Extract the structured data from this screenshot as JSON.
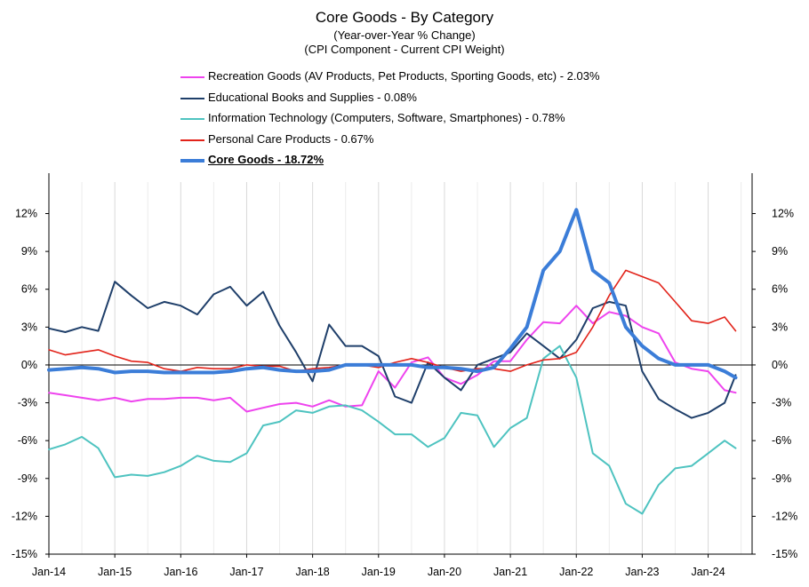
{
  "titles": {
    "main": "Core Goods - By Category",
    "sub1": "(Year-over-Year % Change)",
    "sub2": "(CPI Component - Current CPI Weight)"
  },
  "chart_data": {
    "type": "line",
    "title": "Core Goods - By Category",
    "subtitle": "(Year-over-Year % Change) (CPI Component - Current CPI Weight)",
    "xlabel": "",
    "ylabel": "",
    "x_tick_labels": [
      "Jan-14",
      "Jan-15",
      "Jan-16",
      "Jan-17",
      "Jan-18",
      "Jan-19",
      "Jan-20",
      "Jan-21",
      "Jan-22",
      "Jan-23",
      "Jan-24"
    ],
    "y_tick_labels": [
      "12%",
      "9%",
      "6%",
      "3%",
      "0%",
      "-3%",
      "-6%",
      "-9%",
      "-12%",
      "-15%"
    ],
    "y_ticks": [
      12,
      9,
      6,
      3,
      0,
      -3,
      -6,
      -9,
      -12,
      -15
    ],
    "ylim": [
      -15,
      14.5
    ],
    "xlim": [
      "2014-01",
      "2024-09"
    ],
    "grid": "vertical",
    "legend_position": "top",
    "x": [
      "2014-01",
      "2014-04",
      "2014-07",
      "2014-10",
      "2015-01",
      "2015-04",
      "2015-07",
      "2015-10",
      "2016-01",
      "2016-04",
      "2016-07",
      "2016-10",
      "2017-01",
      "2017-04",
      "2017-07",
      "2017-10",
      "2018-01",
      "2018-04",
      "2018-07",
      "2018-10",
      "2019-01",
      "2019-04",
      "2019-07",
      "2019-10",
      "2020-01",
      "2020-04",
      "2020-07",
      "2020-10",
      "2021-01",
      "2021-04",
      "2021-07",
      "2021-10",
      "2022-01",
      "2022-04",
      "2022-07",
      "2022-10",
      "2023-01",
      "2023-04",
      "2023-07",
      "2023-10",
      "2024-01",
      "2024-04",
      "2024-06"
    ],
    "series": [
      {
        "name": "Recreation Goods (AV Products, Pet Products, Sporting Goods, etc) - 2.03%",
        "color": "#ee44ee",
        "width": 2,
        "values": [
          -2.2,
          -2.4,
          -2.6,
          -2.8,
          -2.6,
          -2.9,
          -2.7,
          -2.7,
          -2.6,
          -2.6,
          -2.8,
          -2.6,
          -3.7,
          -3.4,
          -3.1,
          -3.0,
          -3.3,
          -2.8,
          -3.3,
          -3.2,
          -0.5,
          -1.8,
          0.2,
          0.6,
          -1.0,
          -1.5,
          -0.8,
          0.3,
          0.3,
          2.0,
          3.4,
          3.3,
          4.7,
          3.3,
          4.2,
          3.9,
          3.0,
          2.5,
          0.2,
          -0.3,
          -0.5,
          -2.0,
          -2.2
        ]
      },
      {
        "name": "Educational Books and Supplies - 0.08%",
        "color": "#1f3f6a",
        "width": 2,
        "values": [
          2.9,
          2.6,
          3.0,
          2.7,
          6.6,
          5.5,
          4.5,
          5.0,
          4.7,
          4.0,
          5.6,
          6.2,
          4.7,
          5.8,
          3.1,
          1.0,
          -1.3,
          3.2,
          1.5,
          1.5,
          0.7,
          -2.5,
          -3.0,
          0.2,
          -1.0,
          -2.0,
          0.0,
          0.5,
          1.0,
          2.5,
          1.5,
          0.5,
          2.0,
          4.5,
          5.0,
          4.7,
          -0.5,
          -2.7,
          -3.5,
          -4.2,
          -3.8,
          -3.0,
          -0.8
        ]
      },
      {
        "name": "Information Technology (Computers, Software, Smartphones) - 0.78%",
        "color": "#4ec3c0",
        "width": 2,
        "values": [
          -6.7,
          -6.3,
          -5.7,
          -6.6,
          -8.9,
          -8.7,
          -8.8,
          -8.5,
          -8.0,
          -7.2,
          -7.6,
          -7.7,
          -7.0,
          -4.8,
          -4.5,
          -3.6,
          -3.8,
          -3.3,
          -3.2,
          -3.6,
          -4.5,
          -5.5,
          -5.5,
          -6.5,
          -5.8,
          -3.8,
          -4.0,
          -6.5,
          -5.0,
          -4.2,
          0.5,
          1.5,
          -1.0,
          -7.0,
          -8.0,
          -11.0,
          -11.8,
          -9.5,
          -8.2,
          -8.0,
          -7.0,
          -6.0,
          -6.6
        ]
      },
      {
        "name": "Personal Care Products - 0.67%",
        "color": "#e2231a",
        "width": 1.6,
        "values": [
          1.2,
          0.8,
          1.0,
          1.2,
          0.7,
          0.3,
          0.2,
          -0.3,
          -0.5,
          -0.2,
          -0.3,
          -0.3,
          0.0,
          -0.1,
          -0.1,
          -0.5,
          -0.3,
          -0.2,
          0.0,
          0.0,
          -0.2,
          0.2,
          0.5,
          0.2,
          -0.2,
          -0.5,
          -0.3,
          -0.3,
          -0.5,
          0.0,
          0.4,
          0.5,
          1.0,
          3.0,
          5.5,
          7.5,
          7.0,
          6.5,
          5.0,
          3.5,
          3.3,
          3.8,
          2.7
        ]
      },
      {
        "name": "Core Goods - 18.72%",
        "color": "#3b7dd8",
        "width": 4,
        "bold": true,
        "values": [
          -0.4,
          -0.3,
          -0.2,
          -0.3,
          -0.6,
          -0.5,
          -0.5,
          -0.6,
          -0.6,
          -0.6,
          -0.6,
          -0.5,
          -0.3,
          -0.2,
          -0.4,
          -0.5,
          -0.5,
          -0.4,
          0.0,
          0.0,
          0.0,
          0.0,
          0.0,
          -0.2,
          -0.2,
          -0.3,
          -0.5,
          -0.2,
          1.3,
          3.0,
          7.5,
          9.0,
          12.3,
          7.5,
          6.5,
          3.0,
          1.5,
          0.5,
          0.0,
          0.0,
          0.0,
          -0.5,
          -1.0
        ]
      }
    ]
  }
}
